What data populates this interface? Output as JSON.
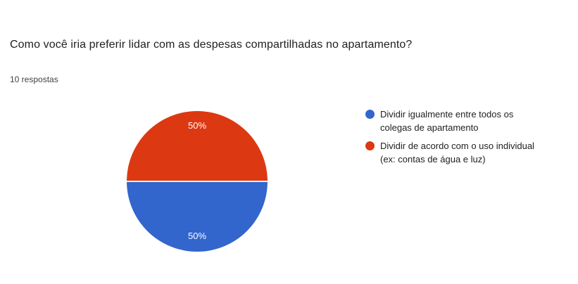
{
  "header": {
    "title": "Como você iria preferir lidar com as despesas compartilhadas no apartamento?",
    "responses_count": "10 respostas"
  },
  "chart_data": {
    "type": "pie",
    "title": "Como você iria preferir lidar com as despesas compartilhadas no apartamento?",
    "responses_total": 10,
    "labels": [
      "Dividir igualmente entre todos os colegas de apartamento",
      "Dividir de acordo com o uso individual (ex: contas de água e luz)"
    ],
    "values": [
      5,
      5
    ],
    "percents": [
      "50%",
      "50%"
    ],
    "colors": [
      "#3366cc",
      "#dc3912"
    ],
    "start_angle_deg": 90,
    "legend_position": "right"
  },
  "legend": {
    "items": [
      {
        "color": "#3366cc",
        "lines": [
          "Dividir igualmente entre todos os",
          "colegas de apartamento"
        ]
      },
      {
        "color": "#dc3912",
        "lines": [
          "Dividir de acordo com o uso individual",
          "(ex: contas de água e luz)"
        ]
      }
    ]
  }
}
